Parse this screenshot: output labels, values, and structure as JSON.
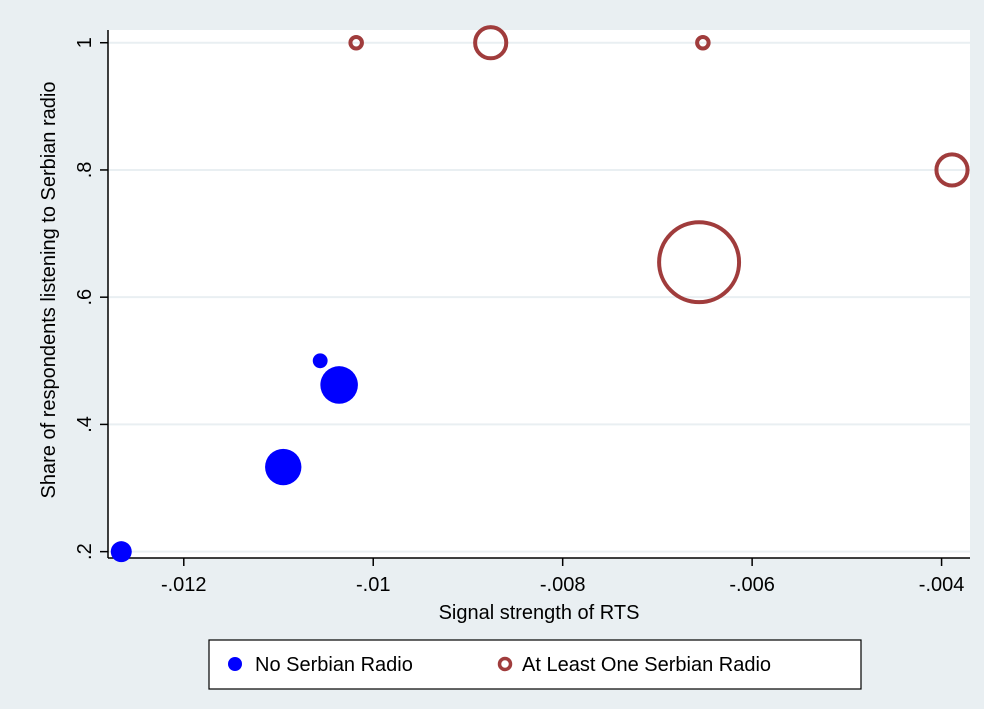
{
  "chart_data": {
    "type": "scatter",
    "title": "",
    "xlabel": "Signal strength of RTS",
    "ylabel": "Share of respondents listening to Serbian radio",
    "xlim": [
      -0.0128,
      -0.0037
    ],
    "ylim": [
      0.19,
      1.02
    ],
    "x_ticks": [
      -0.012,
      -0.01,
      -0.008,
      -0.006,
      -0.004
    ],
    "x_tick_labels": [
      "-.012",
      "-.01",
      "-.008",
      "-.006",
      "-.004"
    ],
    "y_ticks": [
      0.2,
      0.4,
      0.6,
      0.8,
      1.0
    ],
    "y_tick_labels": [
      ".2",
      ".4",
      ".6",
      ".8",
      "1"
    ],
    "grid": "horizontal",
    "legend_position": "bottom",
    "colors": {
      "page_background": "#e9eff2",
      "plot_background": "#ffffff",
      "gridline": "#e9eff2",
      "no_serbian_radio": "#0000ff",
      "at_least_one": "#a03c3c"
    },
    "series": [
      {
        "name": "No Serbian Radio",
        "marker": "filled-circle",
        "points": [
          {
            "x": -0.01266,
            "y": 0.2,
            "weight": 1
          },
          {
            "x": -0.01095,
            "y": 0.333,
            "weight": 3
          },
          {
            "x": -0.01056,
            "y": 0.5,
            "weight": 0.5
          },
          {
            "x": -0.01036,
            "y": 0.462,
            "weight": 3.2
          }
        ]
      },
      {
        "name": "At Least One Serbian Radio",
        "marker": "hollow-circle",
        "points": [
          {
            "x": -0.01018,
            "y": 1.0,
            "weight": 0.3
          },
          {
            "x": -0.00876,
            "y": 1.0,
            "weight": 2.2
          },
          {
            "x": -0.00652,
            "y": 1.0,
            "weight": 0.3
          },
          {
            "x": -0.00656,
            "y": 0.655,
            "weight": 14.5
          },
          {
            "x": -0.00389,
            "y": 0.8,
            "weight": 2.2
          }
        ]
      }
    ]
  }
}
